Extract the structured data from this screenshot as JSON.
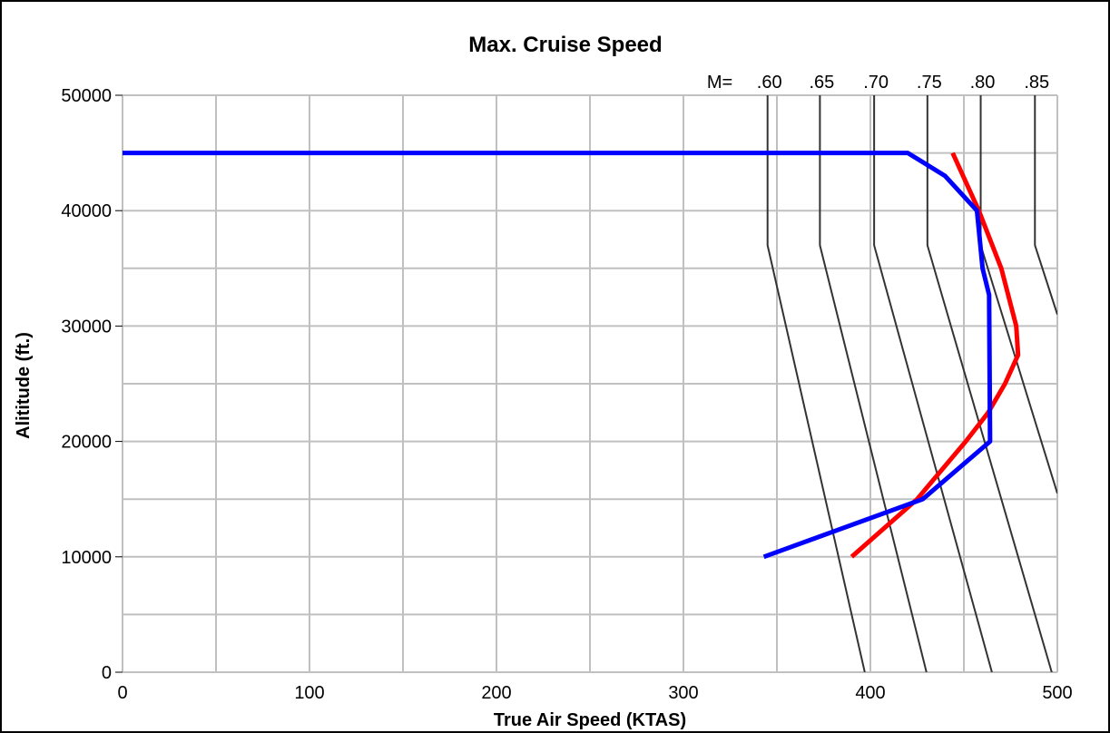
{
  "chart_data": {
    "type": "line",
    "title": "Max. Cruise Speed",
    "xlabel": "True Air Speed (KTAS)",
    "ylabel": "Alititude (ft.)",
    "mach_prefix": "M=",
    "xlim": [
      0,
      500
    ],
    "ylim": [
      0,
      50000
    ],
    "xticks": [
      0,
      100,
      200,
      300,
      400,
      500
    ],
    "yticks": [
      0,
      10000,
      20000,
      30000,
      40000,
      50000
    ],
    "xgrid_minor": [
      50,
      150,
      250,
      350,
      450
    ],
    "ygrid_minor": [
      5000,
      15000,
      25000,
      35000,
      45000
    ],
    "grid": true,
    "series": [
      {
        "name": ".60",
        "color": "#333333",
        "x": [
          345,
          345,
          397
        ],
        "values": [
          50000,
          37000,
          0
        ]
      },
      {
        "name": ".65",
        "color": "#333333",
        "x": [
          373,
          373,
          430
        ],
        "values": [
          50000,
          37000,
          0
        ]
      },
      {
        "name": ".70",
        "color": "#333333",
        "x": [
          402,
          402,
          465
        ],
        "values": [
          50000,
          37000,
          0
        ]
      },
      {
        "name": ".75",
        "color": "#333333",
        "x": [
          430.5,
          430.5,
          497
        ],
        "values": [
          50000,
          37000,
          0
        ]
      },
      {
        "name": ".80",
        "color": "#333333",
        "x": [
          459,
          459,
          500
        ],
        "values": [
          50000,
          37000,
          15500
        ]
      },
      {
        "name": ".85",
        "color": "#333333",
        "x": [
          488,
          488,
          500
        ],
        "values": [
          50000,
          37000,
          31000
        ]
      },
      {
        "color": "#ff0000",
        "x": [
          444,
          458,
          470,
          478,
          479,
          472,
          463,
          451,
          425,
          390
        ],
        "values": [
          45000,
          40000,
          35000,
          30000,
          27500,
          25000,
          22500,
          20000,
          15000,
          10000
        ]
      },
      {
        "color": "#0000ff",
        "x": [
          0,
          420,
          440,
          457,
          460,
          463.5,
          464,
          428,
          343
        ],
        "values": [
          45000,
          45000,
          43000,
          40000,
          35000,
          32700,
          20000,
          15000,
          10000
        ]
      }
    ]
  }
}
